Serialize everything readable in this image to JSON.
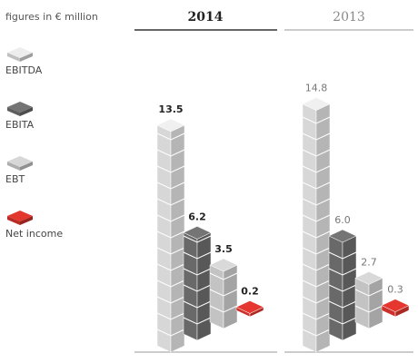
{
  "chart_data": {
    "type": "bar",
    "subtitle": "figures in € million",
    "categories": [
      "2014",
      "2013"
    ],
    "series": [
      {
        "name": "EBITDA",
        "color": "#e2e2e2",
        "values": [
          13.5,
          14.8
        ]
      },
      {
        "name": "EBITA",
        "color": "#6e6e6e",
        "values": [
          6.2,
          6.0
        ],
        "value_labels": [
          "6.2",
          "6.0"
        ]
      },
      {
        "name": "EBT",
        "color": "#cdcdcd",
        "values": [
          3.5,
          2.7
        ]
      },
      {
        "name": "Net income",
        "color": "#d8342c",
        "values": [
          0.2,
          0.3
        ]
      }
    ]
  }
}
